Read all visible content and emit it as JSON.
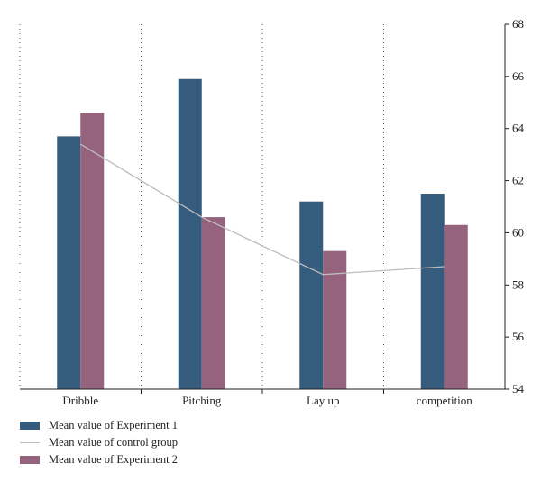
{
  "chart_data": {
    "type": "bar",
    "categories": [
      "Dribble",
      "Pitching",
      "Lay up",
      "competition"
    ],
    "series": [
      {
        "name": "Mean value of Experiment 1",
        "type": "bar",
        "color": "#355b7d",
        "values": [
          63.7,
          65.9,
          61.2,
          61.5
        ]
      },
      {
        "name": "Mean value of Experiment 2",
        "type": "bar",
        "color": "#96637e",
        "values": [
          64.6,
          60.6,
          59.3,
          60.3
        ]
      },
      {
        "name": "Mean value of control group",
        "type": "line",
        "color": "#bdbdbd",
        "values": [
          63.4,
          60.6,
          58.4,
          58.7
        ]
      }
    ],
    "ylim": [
      54,
      68
    ],
    "yticks": [
      54,
      56,
      58,
      60,
      62,
      64,
      66,
      68
    ],
    "y_axis_position": "right",
    "grid": "vertical dotted separators",
    "legend_position": "bottom-left"
  },
  "legend": {
    "items": [
      {
        "label": "Mean value of Experiment 1",
        "kind": "bar",
        "color": "#355b7d"
      },
      {
        "label": "Mean value of control group",
        "kind": "line",
        "color": "#bdbdbd"
      },
      {
        "label": "Mean value of Experiment 2",
        "kind": "bar",
        "color": "#96637e"
      }
    ]
  }
}
